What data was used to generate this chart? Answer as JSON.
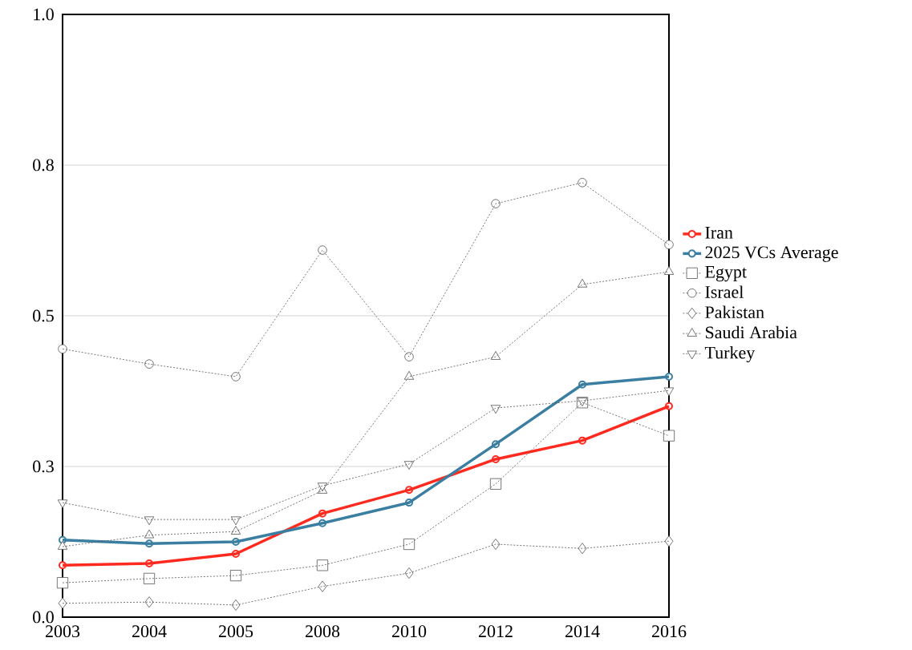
{
  "chart_data": {
    "type": "line",
    "categories": [
      "2003",
      "2004",
      "2005",
      "2008",
      "2010",
      "2012",
      "2014",
      "2016"
    ],
    "ylim": [
      0,
      1
    ],
    "yticks": [
      {
        "value": 0,
        "label": "0.0"
      },
      {
        "value": 0.25,
        "label": "0.3"
      },
      0.5,
      {
        "value": 0.75,
        "label": "0.8"
      },
      {
        "value": 1,
        "label": "1.0"
      }
    ],
    "grid": "y",
    "legend": "right",
    "series": [
      {
        "name": "Iran",
        "color": "#ff2a1f",
        "marker": "circle",
        "line_style": "solid",
        "values": [
          0.086,
          0.089,
          0.105,
          0.172,
          0.211,
          0.262,
          0.293,
          0.35
        ]
      },
      {
        "name": "2025 VCs Average",
        "color": "#3a7ea1",
        "marker": "circle",
        "line_style": "solid",
        "values": [
          0.128,
          0.122,
          0.125,
          0.156,
          0.19,
          0.287,
          0.386,
          0.399
        ]
      },
      {
        "name": "Egypt",
        "color": "#555555",
        "marker": "square",
        "line_style": "dotted",
        "values": [
          0.057,
          0.064,
          0.069,
          0.086,
          0.121,
          0.221,
          0.356,
          0.301
        ]
      },
      {
        "name": "Israel",
        "color": "#555555",
        "marker": "circle",
        "line_style": "dotted",
        "values": [
          0.445,
          0.42,
          0.399,
          0.609,
          0.432,
          0.686,
          0.721,
          0.618
        ]
      },
      {
        "name": "Pakistan",
        "color": "#555555",
        "marker": "diamond",
        "line_style": "dotted",
        "values": [
          0.023,
          0.025,
          0.02,
          0.051,
          0.073,
          0.121,
          0.114,
          0.126
        ]
      },
      {
        "name": "Saudi Arabia",
        "color": "#555555",
        "marker": "triangle",
        "line_style": "dotted",
        "values": [
          0.117,
          0.136,
          0.142,
          0.21,
          0.399,
          0.432,
          0.552,
          0.573
        ]
      },
      {
        "name": "Turkey",
        "color": "#555555",
        "marker": "triangle-down",
        "line_style": "dotted",
        "values": [
          0.19,
          0.162,
          0.162,
          0.218,
          0.254,
          0.347,
          0.359,
          0.376
        ]
      }
    ]
  }
}
